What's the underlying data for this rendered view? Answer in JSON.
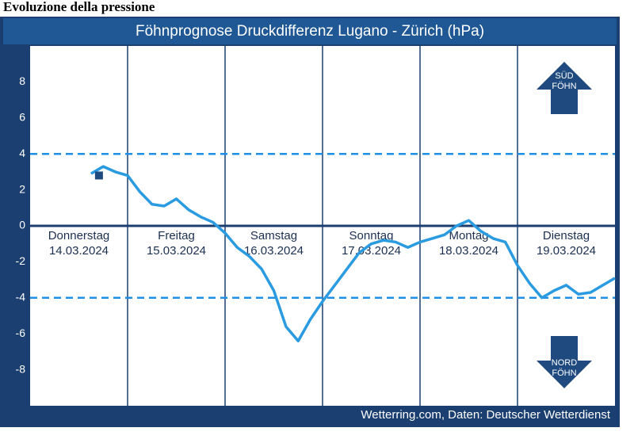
{
  "page_heading": "Evoluzione della pressione",
  "chart_data": {
    "type": "line",
    "title": "Föhnprognose Druckdifferenz Lugano - Zürich (hPa)",
    "days": [
      {
        "name": "Donnerstag",
        "date": "14.03.2024"
      },
      {
        "name": "Freitag",
        "date": "15.03.2024"
      },
      {
        "name": "Samstag",
        "date": "16.03.2024"
      },
      {
        "name": "Sonntag",
        "date": "17.03.2024"
      },
      {
        "name": "Montag",
        "date": "18.03.2024"
      },
      {
        "name": "Dienstag",
        "date": "19.03.2024"
      }
    ],
    "series": [
      {
        "color": "#2a9be0",
        "values": [
          null,
          null,
          null,
          null,
          null,
          2.9,
          3.3,
          3.0,
          2.8,
          1.9,
          1.2,
          1.1,
          1.5,
          0.9,
          0.5,
          0.2,
          -0.4,
          -1.2,
          -1.7,
          -2.4,
          -3.6,
          -5.6,
          -6.4,
          -5.2,
          -4.2,
          -3.3,
          -2.4,
          -1.5,
          -1.0,
          -0.8,
          -0.9,
          -1.2,
          -0.9,
          -0.7,
          -0.5,
          0.0,
          0.3,
          -0.3,
          -0.7,
          -0.9,
          -2.2,
          -3.2,
          -4.0,
          -3.6,
          -3.3,
          -3.8,
          -3.7,
          -3.3,
          -2.9
        ]
      }
    ],
    "marker_value": 2.8,
    "threshold_lines": [
      4,
      -4
    ],
    "ylim": [
      -10,
      10
    ],
    "yticks": [
      -8,
      -6,
      -4,
      -2,
      0,
      2,
      4,
      6,
      8
    ],
    "arrow_top": [
      "SÜD",
      "FÖHN"
    ],
    "arrow_bottom": [
      "NORD",
      "FÖHN"
    ],
    "source": "Wetterring.com, Daten: Deutscher Wetterdienst"
  }
}
